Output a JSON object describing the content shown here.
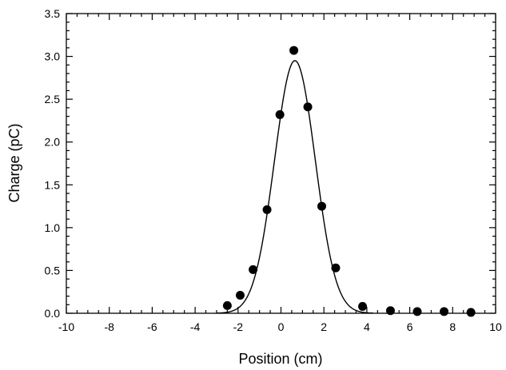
{
  "chart_data": {
    "type": "scatter",
    "xlabel": "Position (cm)",
    "ylabel": "Charge (pC)",
    "xlim": [
      -10,
      10
    ],
    "ylim": [
      0,
      3.5
    ],
    "grid": false,
    "x_ticks": [
      -10,
      -8,
      -6,
      -4,
      -2,
      0,
      2,
      4,
      6,
      8,
      10
    ],
    "x_tick_labels": [
      "-10",
      "-8",
      "-6",
      "-4",
      "-2",
      "0",
      "2",
      "4",
      "6",
      "8",
      "10"
    ],
    "y_ticks": [
      0,
      0.5,
      1.0,
      1.5,
      2.0,
      2.5,
      3.0,
      3.5
    ],
    "y_tick_labels": [
      "0.0",
      "0.5",
      "1.0",
      "1.5",
      "2.0",
      "2.5",
      "3.0",
      "3.5"
    ],
    "series": [
      {
        "type": "scatter",
        "color": "#000000",
        "points": [
          {
            "x": -2.5,
            "y": 0.09
          },
          {
            "x": -1.9,
            "y": 0.21
          },
          {
            "x": -1.3,
            "y": 0.51
          },
          {
            "x": -0.65,
            "y": 1.21
          },
          {
            "x": -0.05,
            "y": 2.32
          },
          {
            "x": 0.6,
            "y": 3.07
          },
          {
            "x": 1.25,
            "y": 2.41
          },
          {
            "x": 1.9,
            "y": 1.25
          },
          {
            "x": 2.55,
            "y": 0.53
          },
          {
            "x": 3.8,
            "y": 0.08
          },
          {
            "x": 5.1,
            "y": 0.03
          },
          {
            "x": 6.35,
            "y": 0.02
          },
          {
            "x": 7.6,
            "y": 0.02
          },
          {
            "x": 8.85,
            "y": 0.01
          }
        ]
      },
      {
        "type": "line",
        "color": "#000000",
        "gaussian_fit": {
          "amplitude": 2.95,
          "center": 0.65,
          "sigma": 0.95
        },
        "x_range": [
          -3.0,
          4.3
        ]
      }
    ]
  }
}
